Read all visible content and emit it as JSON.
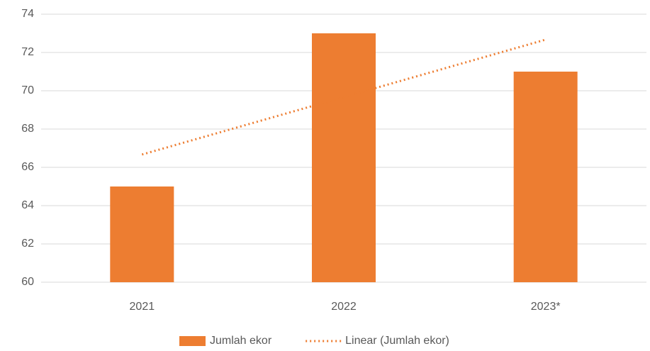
{
  "chart_data": {
    "type": "bar",
    "categories": [
      "2021",
      "2022",
      "2023*"
    ],
    "series": [
      {
        "name": "Jumlah ekor",
        "type": "bar",
        "color": "#ed7d31",
        "values": [
          65,
          73,
          71
        ]
      },
      {
        "name": "Linear (Jumlah ekor)",
        "type": "line",
        "dash": "dotted",
        "color": "#ed7d31",
        "values": [
          66.67,
          69.67,
          72.67
        ]
      }
    ],
    "ylim": [
      60,
      74
    ],
    "yticks": [
      60,
      62,
      64,
      66,
      68,
      70,
      72,
      74
    ],
    "grid": true,
    "legend": "bottom"
  }
}
